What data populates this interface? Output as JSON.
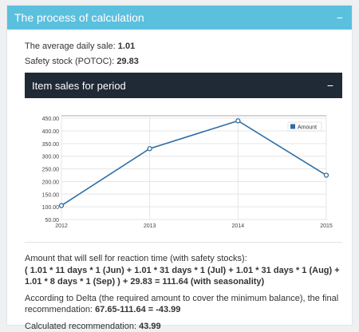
{
  "header": {
    "title": "The process of calculation"
  },
  "stats": {
    "avg_label": "The average daily sale:",
    "avg_value": "1.01",
    "safety_label": "Safety stock (POTOC):",
    "safety_value": "29.83"
  },
  "sales_panel": {
    "title": "Item sales for period"
  },
  "chart_data": {
    "type": "line",
    "categories": [
      "2012",
      "2013",
      "2014",
      "2015"
    ],
    "series": [
      {
        "name": "Amount",
        "values": [
          105,
          330,
          440,
          225
        ],
        "color": "#2e6da4"
      }
    ],
    "yticks": [
      "450.00",
      "400.00",
      "350.00",
      "300.00",
      "250.00",
      "200.00",
      "150.00",
      "100.00",
      "50.00"
    ],
    "ylim": [
      50,
      460
    ],
    "legend": "top-right",
    "grid": true
  },
  "calc": {
    "reaction_label": "Amount that will sell for reaction time (with safety stocks):",
    "formula": "( 1.01 * 11 days * 1 (Jun) + 1.01 * 31 days * 1 (Jul) + 1.01 * 31 days * 1 (Aug) + 1.01 * 8 days * 1 (Sep) ) + 29.83 = 111.64 (with seasonality)",
    "delta_label": "According to Delta (the required amount to cover the minimum balance), the final recommendation:",
    "delta_value": "67.65-111.64 = -43.99",
    "calculated_label": "Calculated recommendation:",
    "calculated_value": "43.99"
  }
}
